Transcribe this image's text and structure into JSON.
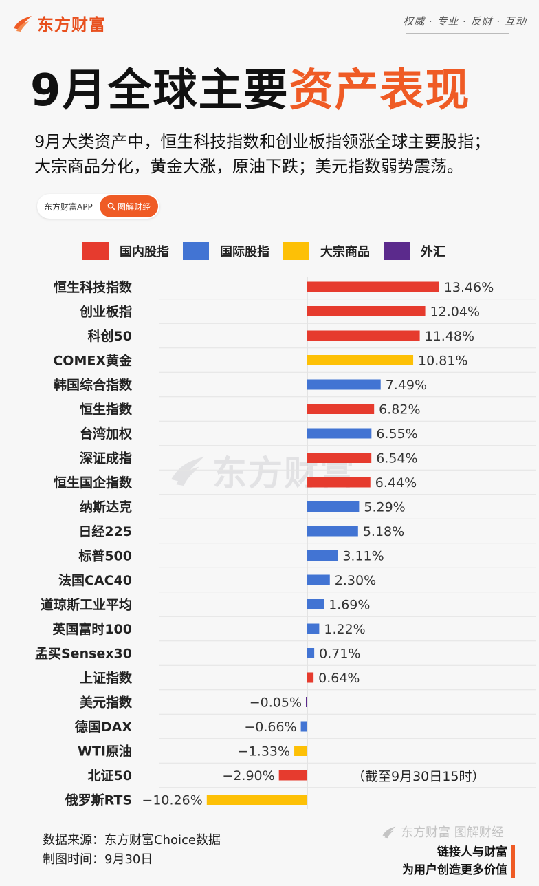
{
  "header": {
    "brand": "东方财富",
    "slogan": "权威 · 专业 · 反财 · 互动",
    "title_black": "9月全球主要",
    "title_accent": "资产表现",
    "subtitle_line1": "9月大类资产中，恒生科技指数和创业板指领涨全球主要股指；",
    "subtitle_line2": "大宗商品分化，黄金大涨，原油下跌；美元指数弱势震荡。"
  },
  "app_pill": {
    "app_name": "东方财富APP",
    "button_label": "图解财经",
    "button_icon": "search-icon"
  },
  "colors": {
    "domestic": "#e63b2e",
    "international": "#4274d3",
    "commodity": "#fdc006",
    "fx": "#5b2a8c",
    "accent": "#ef5b25"
  },
  "watermark": "东方财富",
  "chart_data": {
    "type": "bar",
    "orientation": "horizontal",
    "legend": [
      {
        "key": "domestic",
        "label": "国内股指"
      },
      {
        "key": "international",
        "label": "国际股指"
      },
      {
        "key": "commodity",
        "label": "大宗商品"
      },
      {
        "key": "fx",
        "label": "外汇"
      }
    ],
    "legend_placement": "top",
    "categories": [
      "恒生科技指数",
      "创业板指",
      "科创50",
      "COMEX黄金",
      "韩国综合指数",
      "恒生指数",
      "台湾加权",
      "深证成指",
      "恒生国企指数",
      "纳斯达克",
      "日经225",
      "标普500",
      "法国CAC40",
      "道琼斯工业平均",
      "英国富时100",
      "孟买Sensex30",
      "上证指数",
      "美元指数",
      "德国DAX",
      "WTI原油",
      "北证50",
      "俄罗斯RTS"
    ],
    "values": [
      13.46,
      12.04,
      11.48,
      10.81,
      7.49,
      6.82,
      6.55,
      6.54,
      6.44,
      5.29,
      5.18,
      3.11,
      2.3,
      1.69,
      1.22,
      0.71,
      0.64,
      -0.05,
      -0.66,
      -1.33,
      -2.9,
      -10.26
    ],
    "labels": [
      "13.46%",
      "12.04%",
      "11.48%",
      "10.81%",
      "7.49%",
      "6.82%",
      "6.55%",
      "6.54%",
      "6.44%",
      "5.29%",
      "5.18%",
      "3.11%",
      "2.30%",
      "1.69%",
      "1.22%",
      "0.71%",
      "0.64%",
      "−0.05%",
      "−0.66%",
      "−1.33%",
      "−2.90%",
      "−10.26%"
    ],
    "groups": [
      "domestic",
      "domestic",
      "domestic",
      "commodity",
      "international",
      "domestic",
      "international",
      "domestic",
      "domestic",
      "international",
      "international",
      "international",
      "international",
      "international",
      "international",
      "international",
      "domestic",
      "fx",
      "international",
      "commodity",
      "domestic",
      "commodity"
    ],
    "unit": "%",
    "annotation": "（截至9月30日15时）"
  },
  "footer": {
    "source": "数据来源：东方财富Choice数据",
    "date": "制图时间：9月30日",
    "brand": "东方财富 图解财经",
    "tagline1": "链接人与财富",
    "tagline2": "为用户创造更多价值"
  }
}
